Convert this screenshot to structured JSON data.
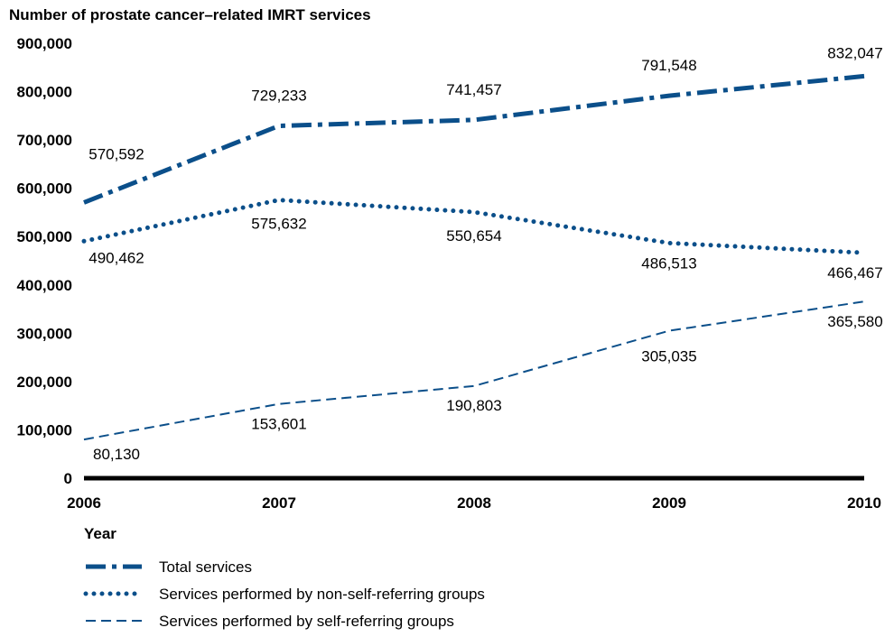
{
  "chart_data": {
    "type": "line",
    "title": "Number of prostate cancer–related IMRT services",
    "xlabel": "Year",
    "x": [
      2006,
      2007,
      2008,
      2009,
      2010
    ],
    "x_tick_labels": [
      "2006",
      "2007",
      "2008",
      "2009",
      "2010"
    ],
    "ylim": [
      0,
      900000
    ],
    "y_ticks": [
      0,
      100000,
      200000,
      300000,
      400000,
      500000,
      600000,
      700000,
      800000,
      900000
    ],
    "y_tick_labels": [
      "0",
      "100,000",
      "200,000",
      "300,000",
      "400,000",
      "500,000",
      "600,000",
      "700,000",
      "800,000",
      "900,000"
    ],
    "grid": false,
    "legend_position": "bottom",
    "series": [
      {
        "name": "Total services",
        "style": "dash-dot",
        "color": "#0b4f8a",
        "values": [
          570592,
          729233,
          741457,
          791548,
          832047
        ],
        "labels": [
          "570,592",
          "729,233",
          "741,457",
          "791,548",
          "832,047"
        ]
      },
      {
        "name": "Services performed by non-self-referring groups",
        "style": "dotted",
        "color": "#0b4f8a",
        "values": [
          490462,
          575632,
          550654,
          486513,
          466467
        ],
        "labels": [
          "490,462",
          "575,632",
          "550,654",
          "486,513",
          "466,467"
        ]
      },
      {
        "name": "Services performed by self-referring groups",
        "style": "dashed",
        "color": "#0b4f8a",
        "values": [
          80130,
          153601,
          190803,
          305035,
          365580
        ],
        "labels": [
          "80,130",
          "153,601",
          "190,803",
          "305,035",
          "365,580"
        ]
      }
    ]
  }
}
